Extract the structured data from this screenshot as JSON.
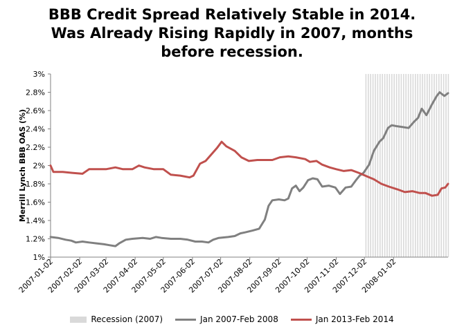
{
  "colors": {
    "recession": "#d9d9d9",
    "series_2007": "#808080",
    "series_2013": "#c0504d",
    "axis": "#808080",
    "text": "#000000"
  },
  "chart_data": {
    "type": "line",
    "title_lines": [
      "BBB Credit Spread Relatively Stable in 2014.",
      "Was Already Rising Rapidly in 2007, months",
      "before recession."
    ],
    "xlabel": "",
    "ylabel": "Merrill Lynch BBB OAS (%)",
    "ylim": [
      1,
      3
    ],
    "grid": false,
    "legend_position": "bottom",
    "yticks": [
      "1%",
      "1.2%",
      "1.4%",
      "1.6%",
      "1.8%",
      "2%",
      "2.2%",
      "2.4%",
      "2.6%",
      "2.8%",
      "3%"
    ],
    "x_start": "2007-01-02",
    "x_end": "2008-02-29",
    "xticks": [
      "2007-01-02",
      "2007-02-02",
      "2007-03-02",
      "2007-04-02",
      "2007-05-02",
      "2007-06-02",
      "2007-07-02",
      "2007-08-02",
      "2007-09-02",
      "2007-10-02",
      "2007-11-02",
      "2007-12-02",
      "2008-01-02"
    ],
    "recession": {
      "name": "Recession (2007)",
      "start": "2007-12-03",
      "end": "2008-02-29"
    },
    "series": [
      {
        "name": "Jan 2007-Feb 2008",
        "points": [
          [
            "2007-01-02",
            1.22
          ],
          [
            "2007-01-10",
            1.21
          ],
          [
            "2007-01-18",
            1.19
          ],
          [
            "2007-01-24",
            1.18
          ],
          [
            "2007-01-29",
            1.16
          ],
          [
            "2007-02-05",
            1.17
          ],
          [
            "2007-02-12",
            1.16
          ],
          [
            "2007-02-20",
            1.15
          ],
          [
            "2007-02-28",
            1.14
          ],
          [
            "2007-03-06",
            1.13
          ],
          [
            "2007-03-12",
            1.12
          ],
          [
            "2007-03-16",
            1.15
          ],
          [
            "2007-03-23",
            1.19
          ],
          [
            "2007-03-30",
            1.2
          ],
          [
            "2007-04-10",
            1.21
          ],
          [
            "2007-04-18",
            1.2
          ],
          [
            "2007-04-24",
            1.22
          ],
          [
            "2007-04-30",
            1.21
          ],
          [
            "2007-05-10",
            1.2
          ],
          [
            "2007-05-20",
            1.2
          ],
          [
            "2007-05-28",
            1.19
          ],
          [
            "2007-06-05",
            1.17
          ],
          [
            "2007-06-12",
            1.17
          ],
          [
            "2007-06-19",
            1.16
          ],
          [
            "2007-06-24",
            1.19
          ],
          [
            "2007-06-30",
            1.21
          ],
          [
            "2007-07-10",
            1.22
          ],
          [
            "2007-07-17",
            1.23
          ],
          [
            "2007-07-23",
            1.26
          ],
          [
            "2007-07-28",
            1.27
          ],
          [
            "2007-08-05",
            1.29
          ],
          [
            "2007-08-12",
            1.31
          ],
          [
            "2007-08-18",
            1.41
          ],
          [
            "2007-08-22",
            1.56
          ],
          [
            "2007-08-26",
            1.62
          ],
          [
            "2007-09-02",
            1.63
          ],
          [
            "2007-09-08",
            1.62
          ],
          [
            "2007-09-12",
            1.64
          ],
          [
            "2007-09-16",
            1.75
          ],
          [
            "2007-09-20",
            1.78
          ],
          [
            "2007-09-24",
            1.72
          ],
          [
            "2007-09-28",
            1.76
          ],
          [
            "2007-10-03",
            1.84
          ],
          [
            "2007-10-08",
            1.86
          ],
          [
            "2007-10-13",
            1.85
          ],
          [
            "2007-10-18",
            1.77
          ],
          [
            "2007-10-25",
            1.78
          ],
          [
            "2007-11-01",
            1.76
          ],
          [
            "2007-11-06",
            1.69
          ],
          [
            "2007-11-12",
            1.76
          ],
          [
            "2007-11-18",
            1.77
          ],
          [
            "2007-11-23",
            1.84
          ],
          [
            "2007-11-27",
            1.89
          ],
          [
            "2007-12-01",
            1.92
          ],
          [
            "2007-12-07",
            2.01
          ],
          [
            "2007-12-12",
            2.16
          ],
          [
            "2007-12-18",
            2.26
          ],
          [
            "2007-12-22",
            2.3
          ],
          [
            "2007-12-27",
            2.41
          ],
          [
            "2007-12-31",
            2.44
          ],
          [
            "2008-01-05",
            2.43
          ],
          [
            "2008-01-12",
            2.42
          ],
          [
            "2008-01-18",
            2.41
          ],
          [
            "2008-01-24",
            2.48
          ],
          [
            "2008-01-28",
            2.52
          ],
          [
            "2008-02-01",
            2.62
          ],
          [
            "2008-02-06",
            2.55
          ],
          [
            "2008-02-12",
            2.67
          ],
          [
            "2008-02-17",
            2.76
          ],
          [
            "2008-02-20",
            2.8
          ],
          [
            "2008-02-25",
            2.76
          ],
          [
            "2008-02-29",
            2.79
          ]
        ]
      },
      {
        "name": "Jan 2013-Feb 2014",
        "points": [
          [
            "2007-01-02",
            2.0
          ],
          [
            "2007-01-05",
            1.93
          ],
          [
            "2007-01-15",
            1.93
          ],
          [
            "2007-01-25",
            1.92
          ],
          [
            "2007-02-05",
            1.91
          ],
          [
            "2007-02-12",
            1.96
          ],
          [
            "2007-02-22",
            1.96
          ],
          [
            "2007-03-02",
            1.96
          ],
          [
            "2007-03-12",
            1.98
          ],
          [
            "2007-03-20",
            1.96
          ],
          [
            "2007-03-30",
            1.96
          ],
          [
            "2007-04-06",
            2.0
          ],
          [
            "2007-04-12",
            1.98
          ],
          [
            "2007-04-22",
            1.96
          ],
          [
            "2007-05-02",
            1.96
          ],
          [
            "2007-05-10",
            1.9
          ],
          [
            "2007-05-20",
            1.89
          ],
          [
            "2007-05-30",
            1.87
          ],
          [
            "2007-06-03",
            1.89
          ],
          [
            "2007-06-10",
            2.02
          ],
          [
            "2007-06-16",
            2.05
          ],
          [
            "2007-06-22",
            2.12
          ],
          [
            "2007-06-28",
            2.19
          ],
          [
            "2007-07-03",
            2.26
          ],
          [
            "2007-07-08",
            2.21
          ],
          [
            "2007-07-17",
            2.16
          ],
          [
            "2007-07-24",
            2.09
          ],
          [
            "2007-08-01",
            2.05
          ],
          [
            "2007-08-10",
            2.06
          ],
          [
            "2007-08-18",
            2.06
          ],
          [
            "2007-08-26",
            2.06
          ],
          [
            "2007-09-03",
            2.09
          ],
          [
            "2007-09-12",
            2.1
          ],
          [
            "2007-09-20",
            2.09
          ],
          [
            "2007-09-30",
            2.07
          ],
          [
            "2007-10-05",
            2.04
          ],
          [
            "2007-10-12",
            2.05
          ],
          [
            "2007-10-18",
            2.01
          ],
          [
            "2007-10-26",
            1.98
          ],
          [
            "2007-11-02",
            1.96
          ],
          [
            "2007-11-10",
            1.94
          ],
          [
            "2007-11-18",
            1.95
          ],
          [
            "2007-11-26",
            1.92
          ],
          [
            "2007-12-05",
            1.88
          ],
          [
            "2007-12-12",
            1.85
          ],
          [
            "2007-12-20",
            1.8
          ],
          [
            "2007-12-28",
            1.77
          ],
          [
            "2008-01-06",
            1.74
          ],
          [
            "2008-01-14",
            1.71
          ],
          [
            "2008-01-22",
            1.72
          ],
          [
            "2008-01-30",
            1.7
          ],
          [
            "2008-02-05",
            1.7
          ],
          [
            "2008-02-12",
            1.67
          ],
          [
            "2008-02-18",
            1.68
          ],
          [
            "2008-02-22",
            1.75
          ],
          [
            "2008-02-26",
            1.76
          ],
          [
            "2008-02-29",
            1.8
          ]
        ]
      }
    ]
  }
}
